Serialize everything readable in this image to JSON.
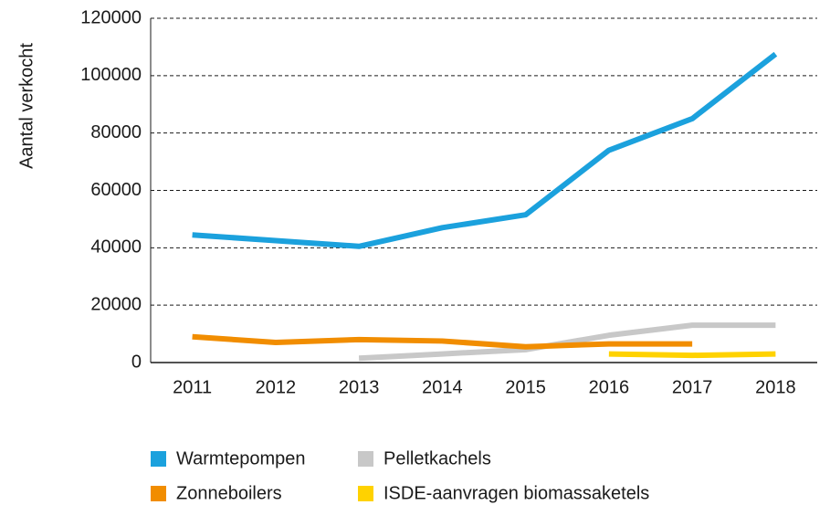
{
  "chart_data": {
    "type": "line",
    "y_label": "Aantal verkocht",
    "categories": [
      "2011",
      "2012",
      "2013",
      "2014",
      "2015",
      "2016",
      "2017",
      "2018"
    ],
    "series": [
      {
        "name": "Warmtepompen",
        "color": "#1ba1dd",
        "values": [
          44500,
          42500,
          40500,
          47000,
          51500,
          74000,
          85000,
          107500
        ]
      },
      {
        "name": "Pelletkachels",
        "color": "#c8c8c8",
        "values": [
          null,
          null,
          1500,
          3000,
          4500,
          9500,
          13000,
          13000
        ]
      },
      {
        "name": "Zonneboilers",
        "color": "#f18d00",
        "values": [
          9000,
          7000,
          8000,
          7500,
          5500,
          6500,
          6500,
          null
        ]
      },
      {
        "name": "ISDE-aanvragen biomassaketels",
        "color": "#ffd200",
        "values": [
          null,
          null,
          null,
          null,
          null,
          3000,
          2500,
          3000
        ]
      }
    ],
    "ylim": [
      0,
      120000
    ],
    "yticks": [
      0,
      20000,
      40000,
      60000,
      80000,
      100000,
      120000
    ],
    "grid": true
  }
}
